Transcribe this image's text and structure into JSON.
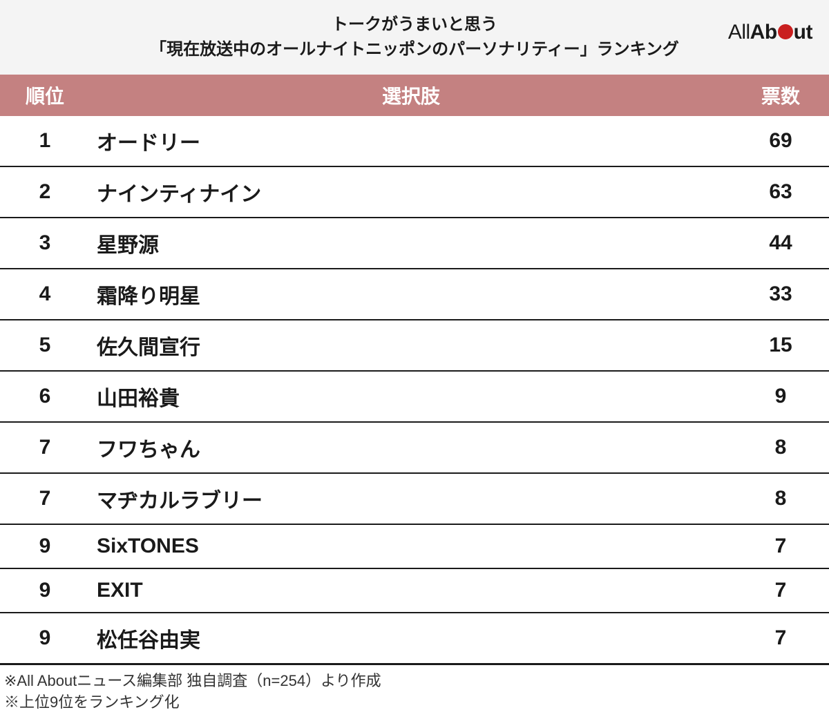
{
  "header": {
    "title_line1": "トークがうまいと思う",
    "title_line2": "「現在放送中のオールナイトニッポンのパーソナリティー」ランキング",
    "logo_part1": "All",
    "logo_part2": "Ab",
    "logo_part3": "ut"
  },
  "table": {
    "columns": {
      "rank": "順位",
      "name": "選択肢",
      "votes": "票数"
    },
    "rows": [
      {
        "rank": "1",
        "name": "オードリー",
        "votes": "69"
      },
      {
        "rank": "2",
        "name": "ナインティナイン",
        "votes": "63"
      },
      {
        "rank": "3",
        "name": "星野源",
        "votes": "44"
      },
      {
        "rank": "4",
        "name": "霜降り明星",
        "votes": "33"
      },
      {
        "rank": "5",
        "name": "佐久間宣行",
        "votes": "15"
      },
      {
        "rank": "6",
        "name": "山田裕貴",
        "votes": "9"
      },
      {
        "rank": "7",
        "name": "フワちゃん",
        "votes": "8"
      },
      {
        "rank": "7",
        "name": "マヂカルラブリー",
        "votes": "8"
      },
      {
        "rank": "9",
        "name": "SixTONES",
        "votes": "7"
      },
      {
        "rank": "9",
        "name": "EXIT",
        "votes": "7"
      },
      {
        "rank": "9",
        "name": "松任谷由実",
        "votes": "7"
      }
    ]
  },
  "footnotes": {
    "line1": "※All Aboutニュース編集部 独自調査（n=254）より作成",
    "line2": "※上位9位をランキング化"
  },
  "styling": {
    "header_bg": "#f4f4f4",
    "thead_bg": "#c48181",
    "thead_color": "#ffffff",
    "border_color": "#1a1a1a",
    "text_color": "#1a1a1a",
    "logo_dot_color": "#c91f1f",
    "title_fontsize": 24,
    "th_fontsize": 28,
    "td_fontsize": 30,
    "footnote_fontsize": 22,
    "col_rank_width": 130,
    "col_votes_width": 140,
    "row_border_width": 2,
    "last_row_border_width": 3
  }
}
